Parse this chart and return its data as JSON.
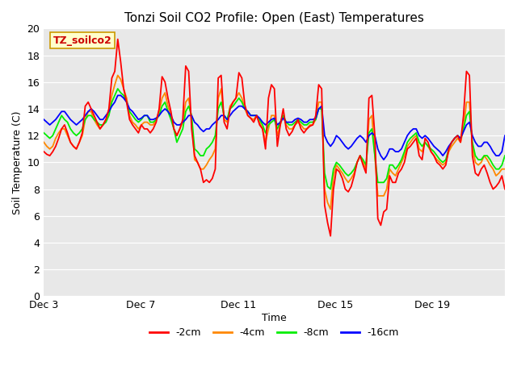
{
  "title": "Tonzi Soil CO2 Profile: Open (East) Temperatures",
  "xlabel": "Time",
  "ylabel": "Soil Temperature (C)",
  "annotation": "TZ_soilco2",
  "ylim": [
    0,
    20
  ],
  "yticks": [
    0,
    2,
    4,
    6,
    8,
    10,
    12,
    14,
    16,
    18,
    20
  ],
  "xtick_labels": [
    "Dec 3",
    "Dec 7",
    "Dec 11",
    "Dec 15",
    "Dec 19"
  ],
  "xtick_positions": [
    0,
    4,
    8,
    12,
    16
  ],
  "total_days": 19,
  "legend": [
    {
      "label": "-2cm",
      "color": "#ff0000"
    },
    {
      "label": "-4cm",
      "color": "#ff8800"
    },
    {
      "label": "-8cm",
      "color": "#00ee00"
    },
    {
      "label": "-16cm",
      "color": "#0000ff"
    }
  ],
  "fig_bg": "#ffffff",
  "plot_bg": "#e8e8e8",
  "grid_color": "#ffffff",
  "series": {
    "2cm": [
      10.8,
      10.6,
      10.5,
      10.8,
      11.2,
      11.8,
      12.5,
      12.8,
      12.2,
      11.5,
      11.2,
      11.0,
      11.5,
      12.2,
      14.2,
      14.5,
      14.0,
      13.5,
      13.0,
      12.5,
      12.8,
      13.2,
      14.0,
      16.3,
      16.8,
      19.2,
      17.5,
      15.5,
      14.5,
      13.2,
      12.8,
      12.5,
      12.2,
      12.8,
      12.5,
      12.5,
      12.2,
      12.5,
      13.0,
      14.0,
      16.4,
      16.0,
      14.8,
      13.8,
      12.5,
      12.0,
      12.5,
      13.2,
      17.2,
      16.8,
      12.5,
      10.5,
      10.0,
      9.5,
      8.5,
      8.7,
      8.5,
      8.8,
      9.5,
      16.3,
      16.5,
      13.0,
      12.5,
      14.0,
      14.5,
      14.8,
      16.7,
      16.3,
      14.3,
      13.5,
      13.3,
      13.0,
      13.5,
      12.8,
      12.5,
      11.0,
      14.8,
      15.8,
      15.5,
      11.2,
      12.8,
      14.0,
      12.5,
      12.0,
      12.3,
      12.8,
      13.2,
      12.5,
      12.2,
      12.5,
      12.7,
      12.8,
      13.5,
      15.8,
      15.5,
      6.8,
      5.5,
      4.5,
      8.0,
      9.5,
      9.3,
      8.8,
      8.0,
      7.8,
      8.2,
      9.0,
      10.0,
      10.5,
      9.8,
      9.2,
      14.8,
      15.0,
      12.0,
      5.8,
      5.3,
      6.3,
      6.5,
      9.0,
      8.5,
      8.5,
      9.2,
      9.5,
      10.0,
      11.0,
      11.2,
      11.5,
      11.8,
      10.5,
      10.2,
      11.8,
      11.5,
      10.8,
      10.5,
      10.0,
      9.8,
      9.5,
      9.8,
      11.0,
      11.5,
      11.8,
      12.0,
      11.5,
      13.5,
      16.8,
      16.5,
      10.5,
      9.2,
      9.0,
      9.5,
      9.8,
      9.2,
      8.5,
      8.0,
      8.2,
      8.5,
      9.0,
      8.0
    ],
    "4cm": [
      11.5,
      11.2,
      11.0,
      11.2,
      11.8,
      12.2,
      12.5,
      12.5,
      12.0,
      11.5,
      11.2,
      11.0,
      11.5,
      12.0,
      13.2,
      13.8,
      13.8,
      13.2,
      12.8,
      12.5,
      12.8,
      13.2,
      13.8,
      15.0,
      15.8,
      16.5,
      16.2,
      15.5,
      14.8,
      13.5,
      13.0,
      12.8,
      12.5,
      12.8,
      13.0,
      13.0,
      12.8,
      12.8,
      13.2,
      13.8,
      14.8,
      15.2,
      14.2,
      13.5,
      12.5,
      12.0,
      12.5,
      13.0,
      14.5,
      14.8,
      13.2,
      10.2,
      10.0,
      9.5,
      9.5,
      9.8,
      10.2,
      10.5,
      11.0,
      14.8,
      15.5,
      13.2,
      13.0,
      14.2,
      14.5,
      14.8,
      15.2,
      14.8,
      14.0,
      13.5,
      13.3,
      13.2,
      13.5,
      13.0,
      12.5,
      11.5,
      12.5,
      13.5,
      13.5,
      12.0,
      12.8,
      13.5,
      12.8,
      12.5,
      12.5,
      12.8,
      13.0,
      12.8,
      12.5,
      12.5,
      12.8,
      12.8,
      13.2,
      14.5,
      14.5,
      8.0,
      7.0,
      6.5,
      9.0,
      9.8,
      9.5,
      9.2,
      8.8,
      8.5,
      8.8,
      9.2,
      10.0,
      10.5,
      10.0,
      9.5,
      13.2,
      13.5,
      10.5,
      7.5,
      7.5,
      7.5,
      8.0,
      9.5,
      9.2,
      9.0,
      9.5,
      10.0,
      10.5,
      11.2,
      11.5,
      11.8,
      12.0,
      11.0,
      10.8,
      11.5,
      11.2,
      10.8,
      10.5,
      10.2,
      10.0,
      9.8,
      10.0,
      10.8,
      11.2,
      11.5,
      11.8,
      11.5,
      12.5,
      14.5,
      14.5,
      11.2,
      10.0,
      9.8,
      10.0,
      10.5,
      10.2,
      9.8,
      9.5,
      9.0,
      9.2,
      9.5,
      9.5
    ],
    "8cm": [
      12.2,
      12.0,
      11.8,
      12.0,
      12.5,
      13.0,
      13.5,
      13.2,
      13.0,
      12.5,
      12.2,
      12.0,
      12.2,
      12.5,
      13.2,
      13.5,
      13.5,
      13.2,
      13.0,
      12.8,
      12.8,
      13.0,
      13.5,
      14.5,
      15.0,
      15.5,
      15.2,
      15.0,
      14.5,
      13.8,
      13.5,
      13.2,
      13.0,
      13.2,
      13.5,
      13.5,
      13.0,
      13.0,
      13.2,
      13.5,
      14.2,
      14.5,
      13.8,
      13.2,
      12.5,
      11.5,
      12.0,
      12.5,
      13.8,
      14.2,
      13.5,
      11.0,
      10.8,
      10.5,
      10.5,
      11.0,
      11.2,
      11.5,
      12.0,
      14.0,
      14.5,
      13.5,
      13.2,
      14.0,
      14.2,
      14.5,
      14.8,
      14.5,
      14.0,
      13.8,
      13.5,
      13.5,
      13.5,
      13.2,
      12.8,
      12.2,
      12.8,
      13.0,
      13.2,
      12.5,
      13.0,
      13.5,
      13.0,
      12.8,
      12.8,
      13.0,
      13.2,
      13.0,
      12.8,
      12.8,
      13.0,
      13.0,
      13.2,
      14.0,
      14.0,
      9.2,
      8.2,
      8.0,
      9.5,
      10.0,
      9.8,
      9.5,
      9.2,
      9.0,
      9.2,
      9.5,
      10.0,
      10.5,
      10.2,
      9.8,
      12.2,
      12.5,
      10.5,
      8.5,
      8.5,
      8.5,
      8.8,
      9.8,
      9.8,
      9.5,
      9.8,
      10.2,
      10.8,
      11.5,
      11.8,
      12.0,
      12.2,
      11.5,
      11.2,
      11.5,
      11.2,
      11.0,
      10.8,
      10.5,
      10.2,
      10.0,
      10.2,
      11.0,
      11.5,
      11.8,
      12.0,
      11.8,
      12.5,
      13.5,
      13.8,
      11.5,
      10.5,
      10.2,
      10.2,
      10.5,
      10.5,
      10.2,
      9.8,
      9.5,
      9.5,
      9.8,
      10.5
    ],
    "16cm": [
      13.2,
      13.0,
      12.8,
      13.0,
      13.2,
      13.5,
      13.8,
      13.8,
      13.5,
      13.2,
      13.0,
      12.8,
      13.0,
      13.2,
      13.5,
      13.8,
      14.0,
      13.8,
      13.5,
      13.2,
      13.2,
      13.5,
      13.8,
      14.2,
      14.5,
      15.0,
      15.0,
      14.8,
      14.5,
      14.0,
      13.8,
      13.5,
      13.2,
      13.3,
      13.5,
      13.5,
      13.2,
      13.2,
      13.3,
      13.5,
      13.8,
      14.0,
      13.8,
      13.5,
      13.0,
      12.8,
      12.8,
      13.0,
      13.2,
      13.5,
      13.5,
      13.0,
      12.8,
      12.5,
      12.3,
      12.5,
      12.5,
      12.8,
      13.0,
      13.2,
      13.5,
      13.5,
      13.2,
      13.5,
      13.8,
      14.0,
      14.2,
      14.2,
      14.0,
      13.8,
      13.5,
      13.5,
      13.5,
      13.3,
      13.0,
      12.8,
      13.0,
      13.2,
      13.3,
      12.8,
      13.0,
      13.3,
      13.0,
      13.0,
      13.0,
      13.2,
      13.3,
      13.2,
      13.0,
      13.0,
      13.2,
      13.2,
      13.3,
      14.0,
      14.2,
      12.0,
      11.5,
      11.2,
      11.5,
      12.0,
      11.8,
      11.5,
      11.2,
      11.0,
      11.2,
      11.5,
      11.8,
      12.0,
      11.8,
      11.5,
      12.0,
      12.2,
      12.0,
      11.0,
      10.5,
      10.2,
      10.5,
      11.0,
      11.0,
      10.8,
      10.8,
      11.0,
      11.5,
      12.0,
      12.3,
      12.5,
      12.5,
      12.0,
      11.8,
      12.0,
      11.8,
      11.5,
      11.2,
      11.0,
      10.8,
      10.5,
      10.8,
      11.2,
      11.5,
      11.8,
      12.0,
      11.8,
      12.3,
      12.8,
      13.0,
      12.0,
      11.5,
      11.2,
      11.2,
      11.5,
      11.5,
      11.2,
      10.8,
      10.5,
      10.5,
      10.8,
      12.0
    ]
  }
}
